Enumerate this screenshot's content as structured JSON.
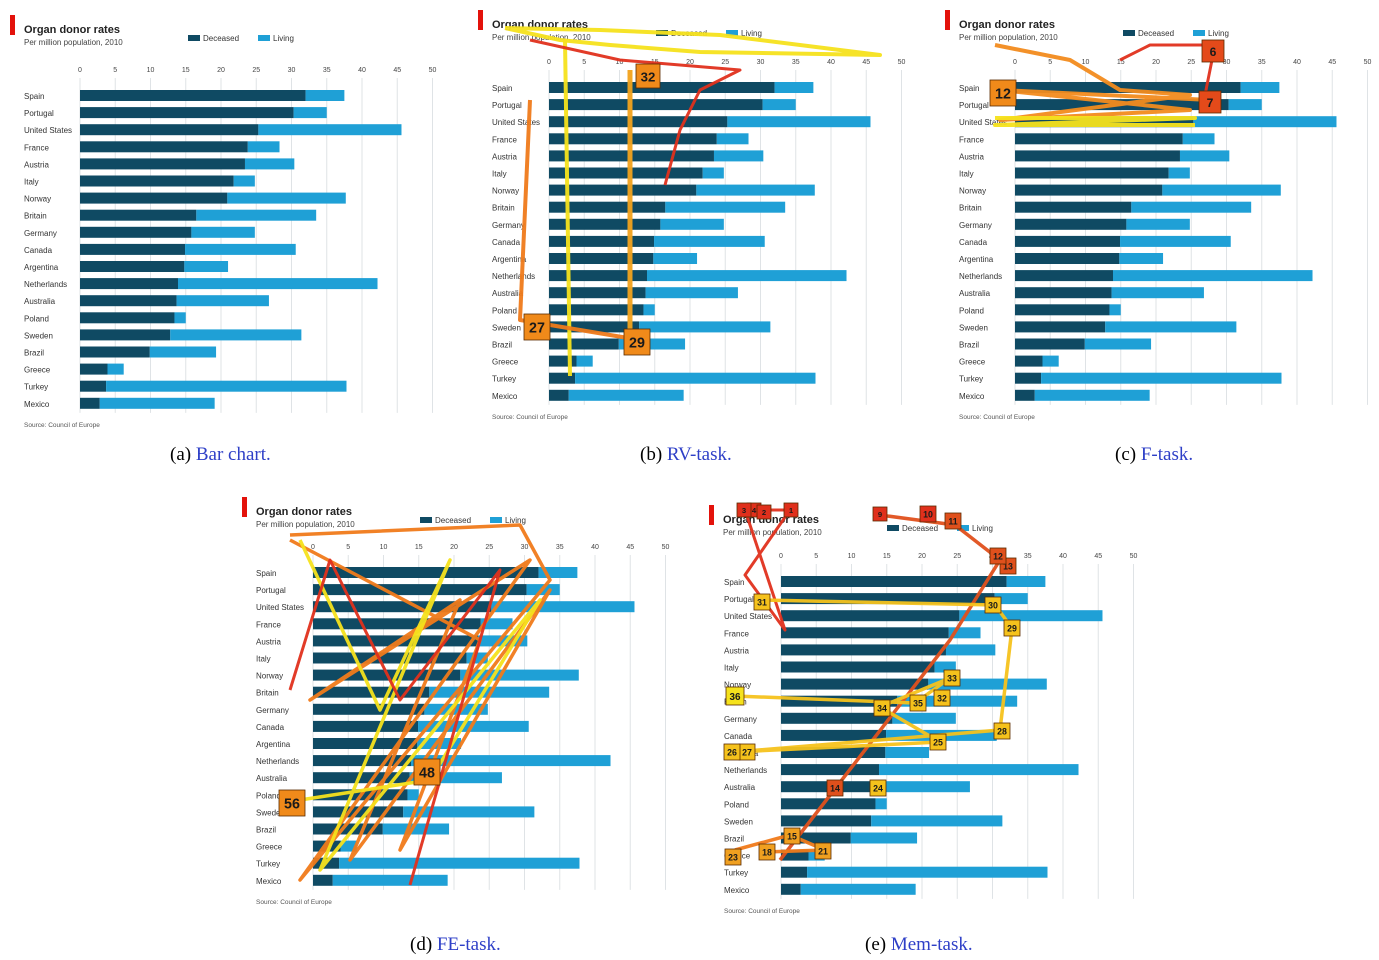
{
  "chart_data": {
    "type": "bar",
    "stacked": true,
    "orientation": "horizontal",
    "title": "Organ donor rates",
    "subtitle": "Per million population, 2010",
    "source": "Source: Council of Europe",
    "x_ticks": [
      0,
      5,
      10,
      15,
      20,
      25,
      30,
      35,
      40,
      45,
      50
    ],
    "xlim": [
      0,
      50
    ],
    "grid": true,
    "legend_position": "top-right",
    "categories": [
      "Spain",
      "Portugal",
      "United States",
      "France",
      "Austria",
      "Italy",
      "Norway",
      "Britain",
      "Germany",
      "Canada",
      "Argentina",
      "Netherlands",
      "Australia",
      "Poland",
      "Sweden",
      "Brazil",
      "Greece",
      "Turkey",
      "Mexico"
    ],
    "series": [
      {
        "name": "Deceased",
        "color": "#0f4a63",
        "values": [
          32.0,
          30.3,
          25.3,
          23.8,
          23.4,
          21.8,
          20.9,
          16.5,
          15.8,
          14.9,
          14.8,
          13.9,
          13.7,
          13.4,
          12.8,
          9.9,
          3.9,
          3.7,
          2.8
        ]
      },
      {
        "name": "Living",
        "color": "#1fa0d6",
        "values": [
          5.5,
          4.7,
          20.3,
          4.5,
          7.0,
          3.0,
          16.8,
          17.0,
          9.0,
          15.7,
          6.2,
          28.3,
          13.1,
          1.6,
          18.6,
          9.4,
          2.3,
          34.1,
          16.3
        ]
      }
    ]
  },
  "panels": [
    {
      "caption_label": "(a)",
      "caption_link": "Bar chart.",
      "overlay_color": "none"
    },
    {
      "caption_label": "(b)",
      "caption_link": "RV-task.",
      "overlay_color": "#f5e21c",
      "big_labels": [
        "32",
        "27",
        "29"
      ]
    },
    {
      "caption_label": "(c)",
      "caption_link": "F-task.",
      "overlay_color": "#f28b1e",
      "big_labels": [
        "12",
        "6",
        "7"
      ]
    },
    {
      "caption_label": "(d)",
      "caption_link": "FE-task.",
      "overlay_color": "#f07a1a",
      "big_labels": [
        "48",
        "56"
      ]
    },
    {
      "caption_label": "(e)",
      "caption_link": "Mem-task.",
      "overlay_color": "#f0a020",
      "big_labels": [
        "36",
        "33",
        "35",
        "34",
        "32",
        "31",
        "30",
        "29",
        "28",
        "27",
        "26",
        "25",
        "24",
        "23",
        "21",
        "18",
        "15",
        "14",
        "13",
        "12",
        "11",
        "10",
        "9",
        "4",
        "3",
        "2",
        "1"
      ]
    }
  ]
}
